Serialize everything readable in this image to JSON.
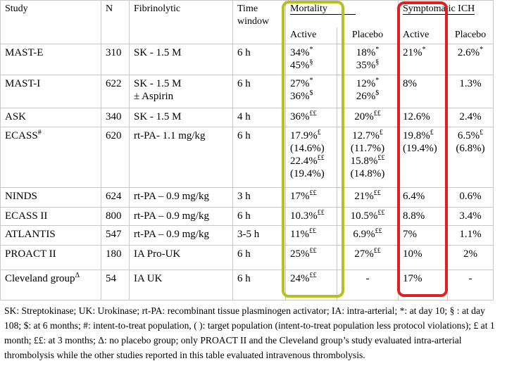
{
  "table": {
    "header": {
      "study": "Study",
      "n": "N",
      "fibrinolytic": "Fibrinolytic",
      "time": "Time window",
      "mortality": "Mortality",
      "ich": "Symptomatic ICH",
      "sub": [
        "Active",
        "Placebo",
        "Active",
        "Placebo"
      ]
    },
    "rows": [
      [
        "MAST-E",
        310,
        "SK - 1.5 M",
        "6 h",
        [
          {
            "text": "34%",
            "sup": "*"
          },
          {
            "text": "45%",
            "sup": "§"
          }
        ],
        [
          {
            "text": "18%",
            "sup": "*"
          },
          {
            "text": "35%",
            "sup": "§"
          }
        ],
        {
          "text": "21%",
          "sup": "*"
        },
        {
          "text": "2.6%",
          "sup": "*"
        }
      ],
      [
        "MAST-I",
        622,
        [
          "SK - 1.5 M",
          "± Aspirin"
        ],
        "6 h",
        [
          {
            "text": "27%",
            "sup": "*"
          },
          {
            "text": "36%",
            "sup": "$"
          }
        ],
        [
          {
            "text": "12%",
            "sup": "*"
          },
          {
            "text": "26%",
            "sup": "$"
          }
        ],
        "8%",
        "1.3%"
      ],
      [
        "ASK",
        340,
        "SK - 1.5 M",
        "4 h",
        {
          "text": "36%",
          "sup": "££"
        },
        {
          "text": "20%",
          "sup": "££"
        },
        "12.6%",
        "2.4%"
      ],
      [
        {
          "text": "ECASS",
          "sup": "#"
        },
        620,
        "rt-PA- 1.1 mg/kg",
        "6 h",
        [
          {
            "text": "17.9%",
            "sup": "£"
          },
          "(14.6%)",
          {
            "text": "22.4%",
            "sup": "££"
          },
          "(19.4%)"
        ],
        [
          {
            "text": "12.7%",
            "sup": "£"
          },
          "(11.7%)",
          {
            "text": "15.8%",
            "sup": "££"
          },
          "(14.8%)"
        ],
        [
          {
            "text": "19.8%",
            "sup": "£"
          },
          "(19.4%)"
        ],
        [
          {
            "text": "6.5%",
            "sup": "£"
          },
          "(6.8%)"
        ]
      ],
      [
        "NINDS",
        624,
        "rt-PA – 0.9 mg/kg",
        "3 h",
        {
          "text": "17%",
          "sup": "££"
        },
        {
          "text": "21%",
          "sup": "££"
        },
        "6.4%",
        "0.6%"
      ],
      [
        "ECASS II",
        800,
        "rt-PA – 0.9 mg/kg",
        "6 h",
        {
          "text": "10.3%",
          "sup": "££"
        },
        {
          "text": "10.5%",
          "sup": "££"
        },
        "8.8%",
        "3.4%"
      ],
      [
        "ATLANTIS",
        547,
        "rt-PA – 0.9 mg/kg",
        "3-5 h",
        {
          "text": "11%",
          "sup": "££"
        },
        {
          "text": "6.9%",
          "sup": "££"
        },
        "7%",
        "1.1%"
      ],
      [
        "PROACT II",
        180,
        "IA Pro-UK",
        "6 h",
        {
          "text": "25%",
          "sup": "££"
        },
        {
          "text": "27%",
          "sup": "££"
        },
        "10%",
        "2%"
      ],
      [
        {
          "text": "Cleveland group",
          "sup": "Δ"
        },
        54,
        "IA UK",
        "6 h",
        {
          "text": "24%",
          "sup": "££"
        },
        "-",
        "17%",
        "-"
      ]
    ]
  },
  "footnote": "SK: Streptokinase; UK: Urokinase; rt-PA: recombinant tissue plasminogen activator; IA: intra-arterial; *: at day 10; § : at day 108; $: at 6 months; #: intent-to-treat population, ( ): target population (intent-to-treat population less protocol violations); £ at 1 month; ££: at 3 months; Δ: no placebo group; only PROACT II and the Cleveland group’s study evaluated intra-arterial thrombolysis while the other studies reported in this table evaluated intravenous thrombolysis."
}
